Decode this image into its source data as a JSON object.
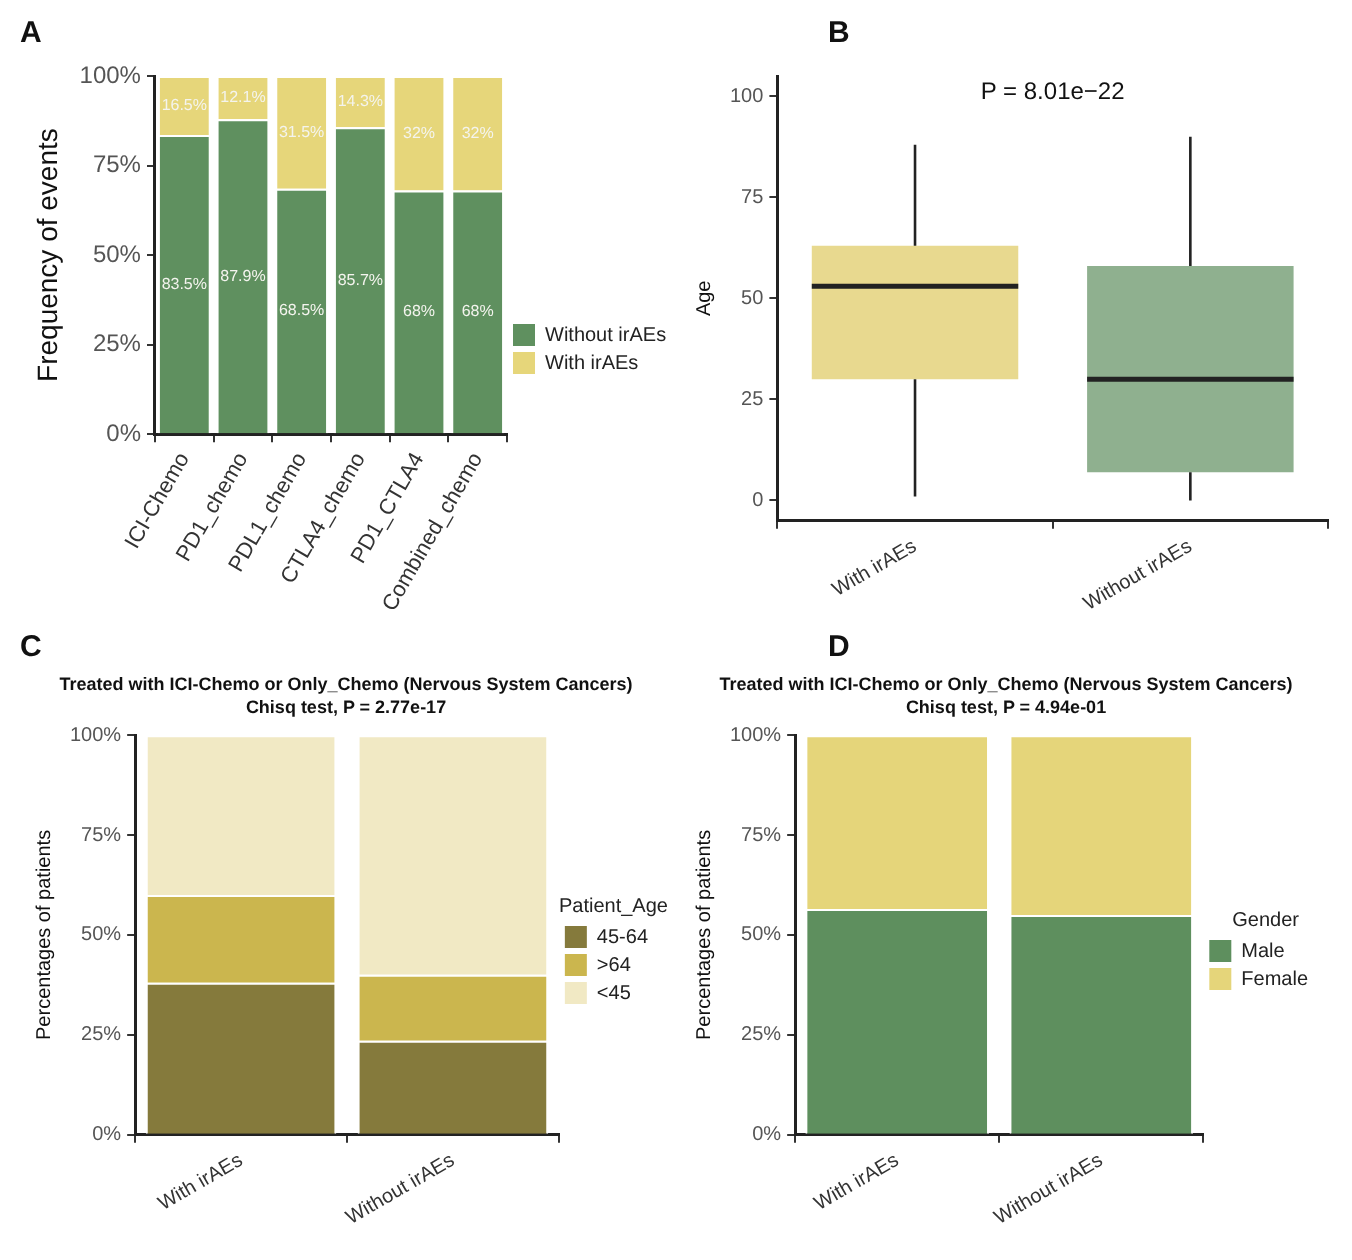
{
  "chart_data": [
    {
      "type": "bar",
      "annotations": [
        "A"
      ],
      "ylabel": "Frequency of events",
      "categories": [
        "ICI-Chemo",
        "PD1_chemo",
        "PDL1_chemo",
        "CTLA4_chemo",
        "PD1_CTLA4",
        "Combined_chemo"
      ],
      "stacked": true,
      "legend": "right",
      "series": [
        {
          "name": "Without irAEs",
          "color": "#5f905f",
          "values": [
            83.5,
            87.9,
            68.5,
            85.7,
            68,
            68
          ],
          "value_labels": [
            "83.5%",
            "87.9%",
            "68.5%",
            "85.7%",
            "68%",
            "68%"
          ]
        },
        {
          "name": "With irAEs",
          "color": "#e6d67a",
          "values": [
            16.5,
            12.1,
            31.5,
            14.3,
            32,
            32
          ],
          "value_labels": [
            "16.5%",
            "12.1%",
            "31.5%",
            "14.3%",
            "32%",
            "32%"
          ]
        }
      ],
      "ylim": [
        0,
        100
      ],
      "yticks": [
        {
          "value": 0,
          "label": "0%"
        },
        {
          "value": 25,
          "label": "25%"
        },
        {
          "value": 50,
          "label": "50%"
        },
        {
          "value": 75,
          "label": "75%"
        },
        {
          "value": 100,
          "label": "100%"
        }
      ]
    },
    {
      "type": "box",
      "annotations": [
        "B",
        "P = 8.01e−22"
      ],
      "ylabel": "Age",
      "categories": [
        "With irAEs",
        "Without irAEs"
      ],
      "colors": [
        "#e8d98f",
        "#8fb08f"
      ],
      "boxes": [
        {
          "low": 1,
          "q1": 30,
          "median": 53,
          "q3": 63,
          "high": 88
        },
        {
          "low": 0,
          "q1": 7,
          "median": 30,
          "q3": 58,
          "high": 90
        }
      ],
      "ylim": [
        -5,
        105
      ],
      "yticks": [
        0,
        25,
        50,
        75,
        100
      ]
    },
    {
      "type": "bar",
      "annotations": [
        "C"
      ],
      "title": "Treated with ICI-Chemo or Only_Chemo (Nervous System Cancers)",
      "subtitle": "Chisq test, P = 2.77e-17",
      "ylabel": "Percentages of patients",
      "categories": [
        "With irAEs",
        "Without irAEs"
      ],
      "stacked": true,
      "legend": "right",
      "legend_title": "Patient_Age",
      "series": [
        {
          "name": "45-64",
          "color": "#857a3c",
          "values": [
            38,
            23.5
          ]
        },
        {
          "name": ">64",
          "color": "#cbb64e",
          "values": [
            22,
            16.5
          ]
        },
        {
          "name": "<45",
          "color": "#f1e9c4",
          "values": [
            40,
            60
          ]
        }
      ],
      "ylim": [
        0,
        100
      ],
      "yticks": [
        {
          "value": 0,
          "label": "0%"
        },
        {
          "value": 25,
          "label": "25%"
        },
        {
          "value": 50,
          "label": "50%"
        },
        {
          "value": 75,
          "label": "75%"
        },
        {
          "value": 100,
          "label": "100%"
        }
      ]
    },
    {
      "type": "bar",
      "annotations": [
        "D"
      ],
      "title": "Treated with ICI-Chemo or Only_Chemo (Nervous System Cancers)",
      "subtitle": "Chisq test, P = 4.94e-01",
      "ylabel": "Percentages of patients",
      "categories": [
        "With irAEs",
        "Without irAEs"
      ],
      "stacked": true,
      "legend": "right",
      "legend_title": "Gender",
      "series": [
        {
          "name": "Male",
          "color": "#5e8f5e",
          "values": [
            56.5,
            55
          ]
        },
        {
          "name": "Female",
          "color": "#e5d57a",
          "values": [
            43.5,
            45
          ]
        }
      ],
      "ylim": [
        0,
        100
      ],
      "yticks": [
        {
          "value": 0,
          "label": "0%"
        },
        {
          "value": 25,
          "label": "25%"
        },
        {
          "value": 50,
          "label": "50%"
        },
        {
          "value": 75,
          "label": "75%"
        },
        {
          "value": 100,
          "label": "100%"
        }
      ]
    }
  ]
}
